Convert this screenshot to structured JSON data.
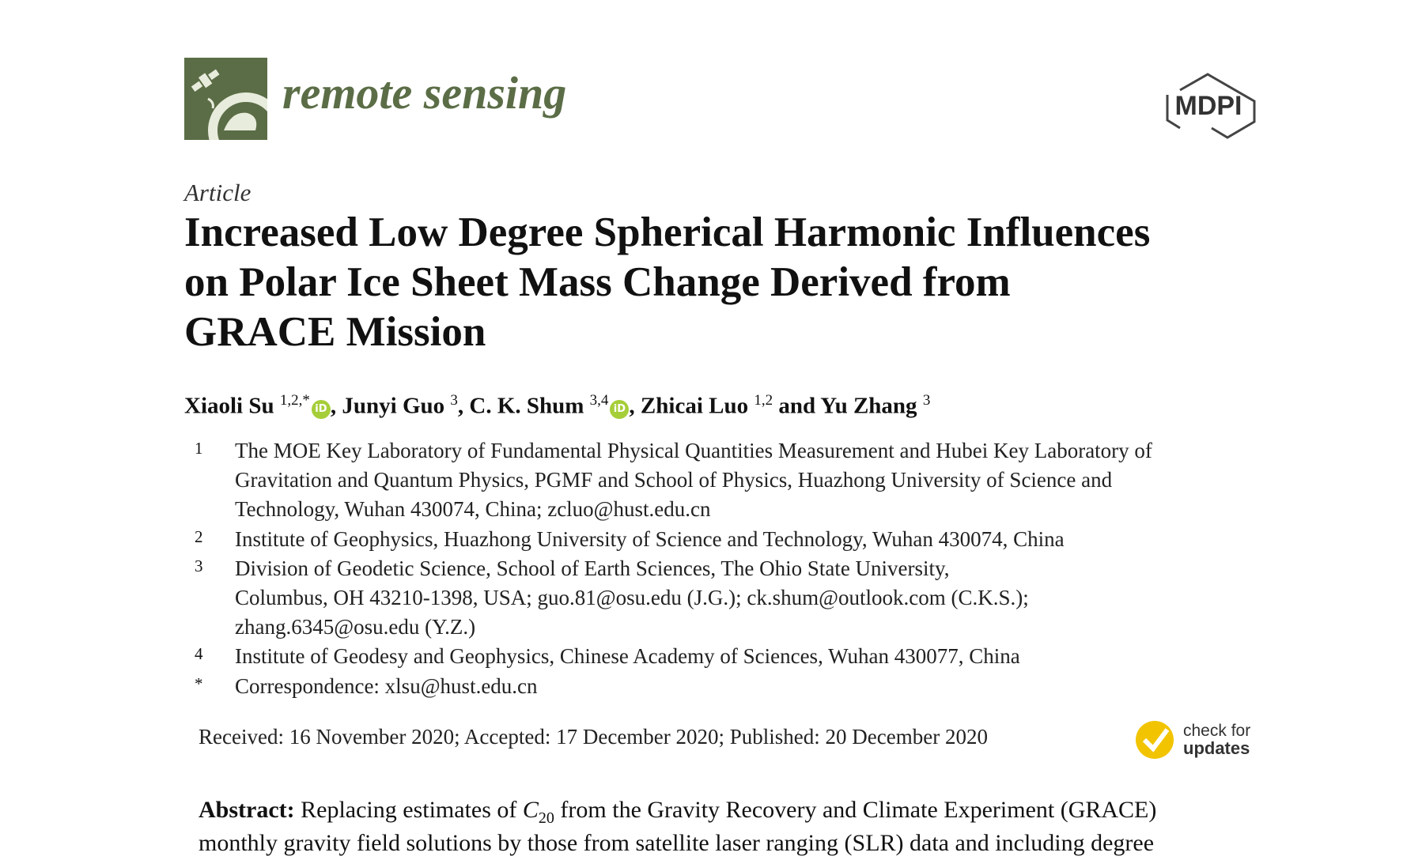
{
  "header": {
    "journal": "remote sensing",
    "publisher": "MDPI"
  },
  "article_type": "Article",
  "title_lines": [
    "Increased Low Degree Spherical Harmonic Influences",
    "on Polar Ice Sheet Mass Change Derived from",
    "GRACE Mission"
  ],
  "authors": [
    {
      "name": "Xiaoli Su",
      "sup": "1,2,*",
      "orcid": true,
      "sep": ", "
    },
    {
      "name": "Junyi Guo",
      "sup": "3",
      "orcid": false,
      "sep": ", "
    },
    {
      "name": "C. K. Shum",
      "sup": "3,4",
      "orcid": true,
      "sep": ", "
    },
    {
      "name": "Zhicai Luo",
      "sup": "1,2",
      "orcid": false,
      "sep": " and "
    },
    {
      "name": "Yu Zhang",
      "sup": "3",
      "orcid": false
    }
  ],
  "affiliations": [
    {
      "mark": "1",
      "lines": [
        "The MOE Key Laboratory of Fundamental Physical Quantities Measurement and Hubei Key Laboratory of",
        "Gravitation and Quantum Physics, PGMF and School of Physics, Huazhong University of Science and",
        "Technology, Wuhan 430074, China; zcluo@hust.edu.cn"
      ]
    },
    {
      "mark": "2",
      "lines": [
        "Institute of Geophysics, Huazhong University of Science and Technology, Wuhan 430074, China"
      ]
    },
    {
      "mark": "3",
      "lines": [
        "Division of Geodetic Science, School of Earth Sciences, The Ohio State University,",
        "Columbus, OH 43210-1398, USA; guo.81@osu.edu (J.G.); ck.shum@outlook.com (C.K.S.);",
        "zhang.6345@osu.edu (Y.Z.)"
      ]
    },
    {
      "mark": "4",
      "lines": [
        "Institute of Geodesy and Geophysics, Chinese Academy of Sciences, Wuhan 430077, China"
      ]
    },
    {
      "mark": "*",
      "lines": [
        "Correspondence: xlsu@hust.edu.cn"
      ]
    }
  ],
  "dates": "Received: 16 November 2020; Accepted: 17 December 2020; Published: 20 December 2020",
  "badge": [
    "check for",
    "updates"
  ],
  "abstract": {
    "label": "Abstract:",
    "line1": [
      "Replacing estimates of ",
      "C",
      "20",
      " from the Gravity Recovery and Climate Experiment (GRACE)"
    ],
    "line2": "monthly gravity field solutions by those from satellite laser ranging (SLR) data and including degree"
  }
}
